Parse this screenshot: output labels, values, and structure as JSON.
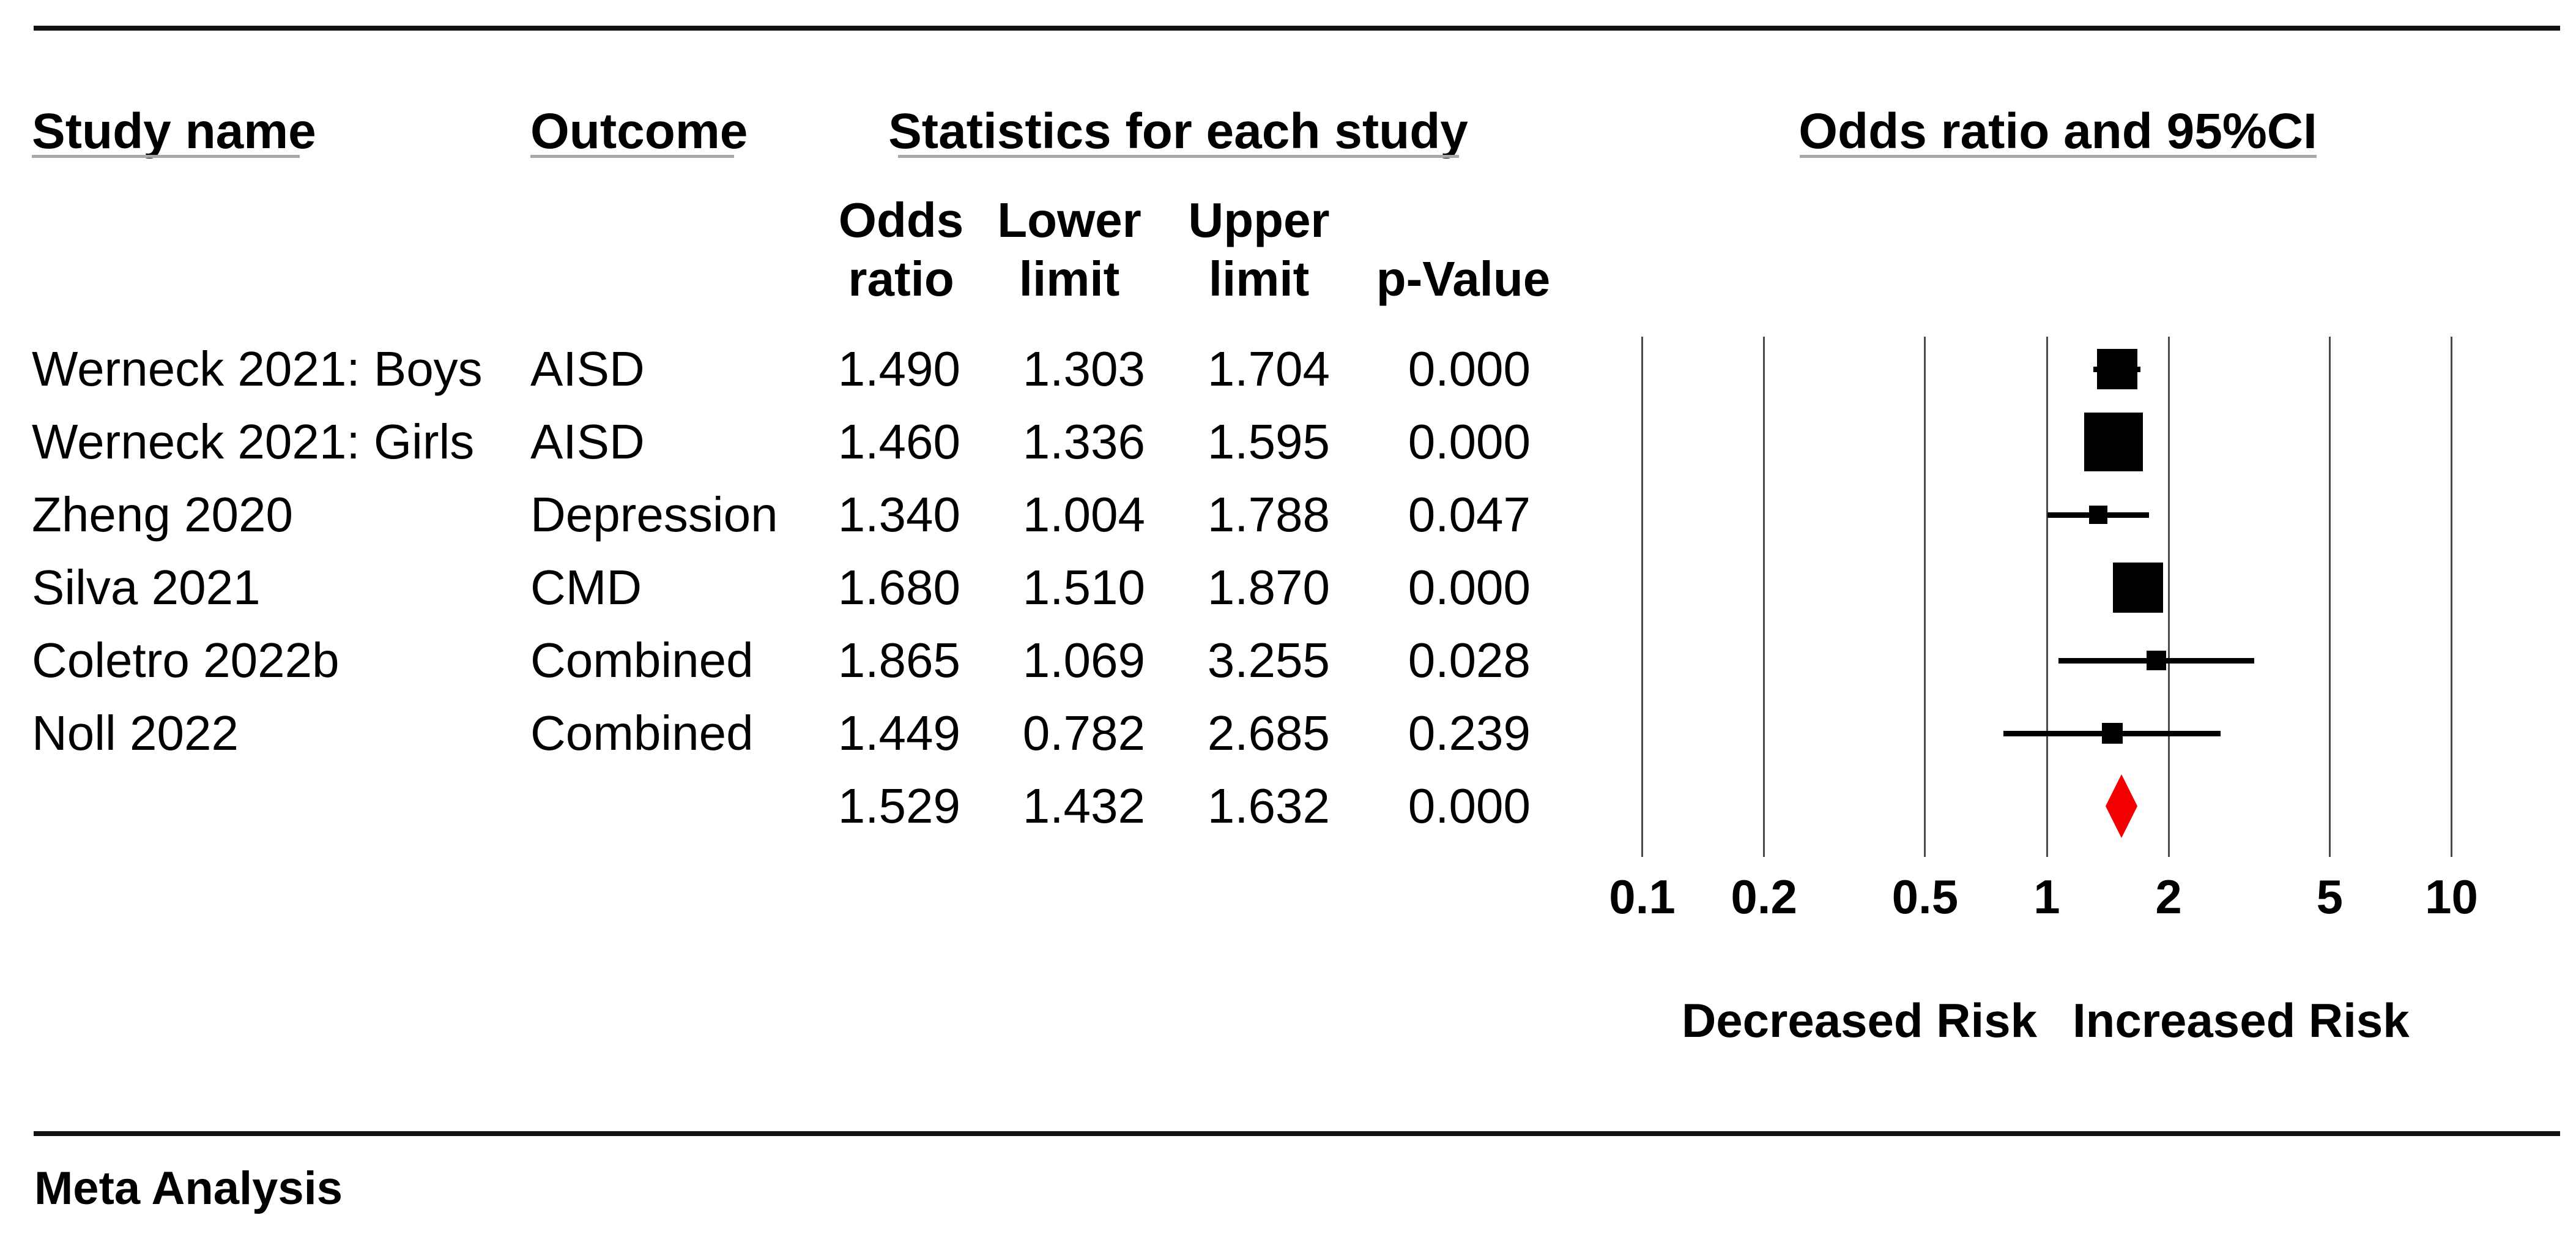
{
  "headers": {
    "study": "Study name",
    "outcome": "Outcome",
    "stats": "Statistics for each study",
    "plot": "Odds ratio and 95%CI",
    "col_odds": "Odds\nratio",
    "col_lower": "Lower\nlimit",
    "col_upper": "Upper\nlimit",
    "col_p": "p-Value"
  },
  "footer": {
    "label": "Meta Analysis"
  },
  "chart_data": {
    "type": "forest",
    "title": "Odds ratio and 95%CI",
    "x_scale": "log10",
    "x_range": [
      0.1,
      10
    ],
    "x_ticks": [
      "0.1",
      "0.2",
      "0.5",
      "1",
      "2",
      "5",
      "10"
    ],
    "grid": "vertical-lines-at-ticks",
    "legend_position": "none",
    "direction_labels": {
      "left": "Decreased Risk",
      "right": "Increased Risk"
    },
    "rows": [
      {
        "study": "Werneck 2021: Boys",
        "outcome": "AISD",
        "odds_ratio": "1.490",
        "lower_limit": "1.303",
        "upper_limit": "1.704",
        "p_value": "0.000",
        "marker_size_px": 66
      },
      {
        "study": "Werneck 2021: Girls",
        "outcome": "AISD",
        "odds_ratio": "1.460",
        "lower_limit": "1.336",
        "upper_limit": "1.595",
        "p_value": "0.000",
        "marker_size_px": 96
      },
      {
        "study": "Zheng 2020",
        "outcome": "Depression",
        "odds_ratio": "1.340",
        "lower_limit": "1.004",
        "upper_limit": "1.788",
        "p_value": "0.047",
        "marker_size_px": 30
      },
      {
        "study": "Silva 2021",
        "outcome": "CMD",
        "odds_ratio": "1.680",
        "lower_limit": "1.510",
        "upper_limit": "1.870",
        "p_value": "0.000",
        "marker_size_px": 82
      },
      {
        "study": "Coletro 2022b",
        "outcome": "Combined",
        "odds_ratio": "1.865",
        "lower_limit": "1.069",
        "upper_limit": "3.255",
        "p_value": "0.028",
        "marker_size_px": 32
      },
      {
        "study": "Noll 2022",
        "outcome": "Combined",
        "odds_ratio": "1.449",
        "lower_limit": "0.782",
        "upper_limit": "2.685",
        "p_value": "0.239",
        "marker_size_px": 34
      }
    ],
    "summary": {
      "odds_ratio": "1.529",
      "lower_limit": "1.432",
      "upper_limit": "1.632",
      "p_value": "0.000",
      "marker": "diamond"
    }
  },
  "colors": {
    "text": "#000000",
    "rule": "#111111",
    "gridline": "#4a4a4a",
    "underline": "#a8a8a8",
    "marker": "#000000",
    "summary_diamond": "#f40000"
  }
}
